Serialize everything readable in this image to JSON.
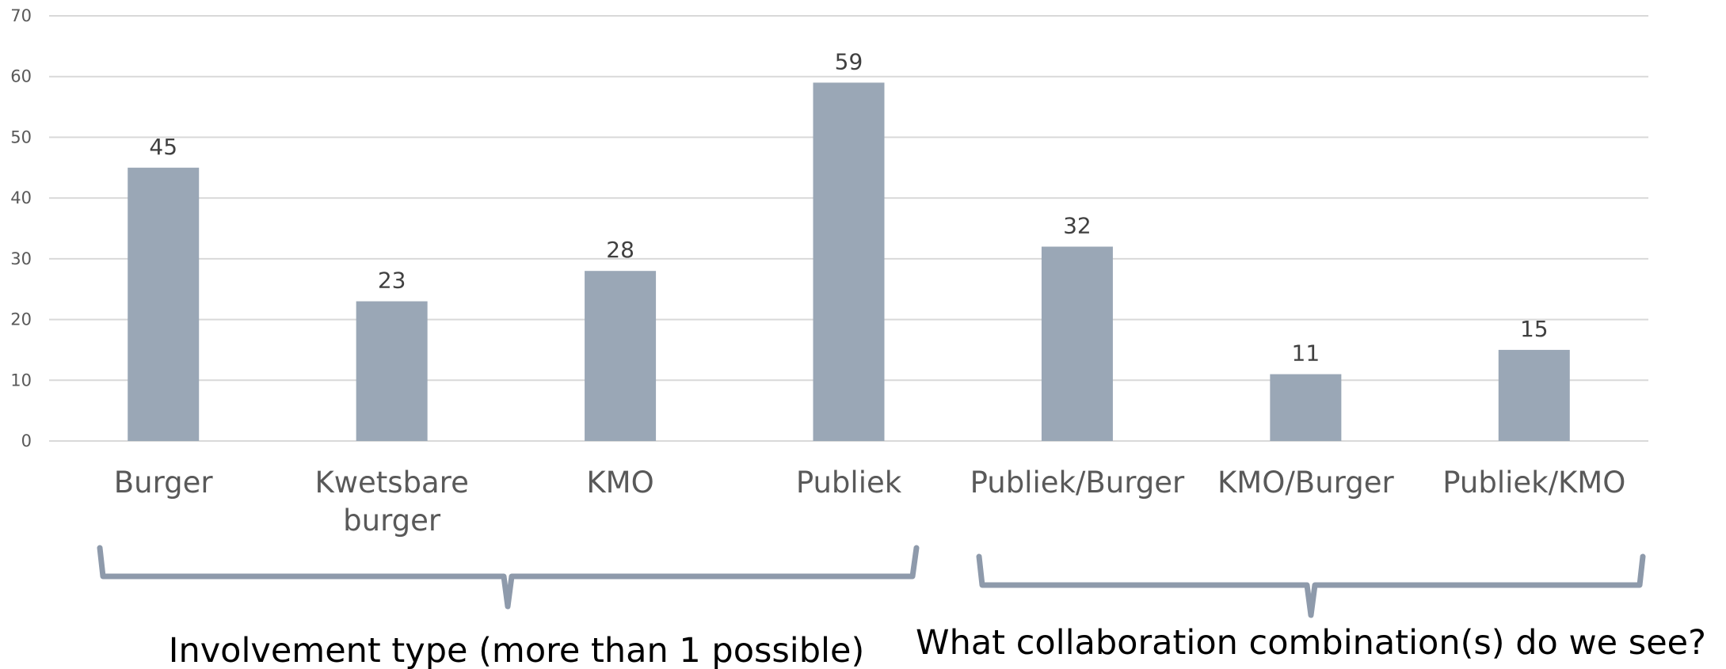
{
  "colors": {
    "bar": "#9aa7b6",
    "brace": "#8e9aab"
  },
  "chart_data": {
    "type": "bar",
    "categories": [
      "Burger",
      "Kwetsbare burger",
      "KMO",
      "Publiek",
      "Publiek/Burger",
      "KMO/Burger",
      "Publiek/KMO"
    ],
    "category_lines": [
      [
        "Burger"
      ],
      [
        "Kwetsbare",
        "burger"
      ],
      [
        "KMO"
      ],
      [
        "Publiek"
      ],
      [
        "Publiek/Burger"
      ],
      [
        "KMO/Burger"
      ],
      [
        "Publiek/KMO"
      ]
    ],
    "values": [
      45,
      23,
      28,
      59,
      32,
      11,
      15
    ],
    "ylim": [
      0,
      70
    ],
    "yticks": [
      0,
      10,
      20,
      30,
      40,
      50,
      60,
      70
    ],
    "grid": true,
    "data_labels": true,
    "title": "",
    "xlabel": "",
    "ylabel": "",
    "groups": [
      {
        "label": "Involvement type (more than 1 possible)",
        "categories": [
          "Burger",
          "Kwetsbare burger",
          "KMO",
          "Publiek"
        ]
      },
      {
        "label": "What collaboration combination(s) do we see?",
        "categories": [
          "Publiek/Burger",
          "KMO/Burger",
          "Publiek/KMO"
        ]
      }
    ]
  }
}
